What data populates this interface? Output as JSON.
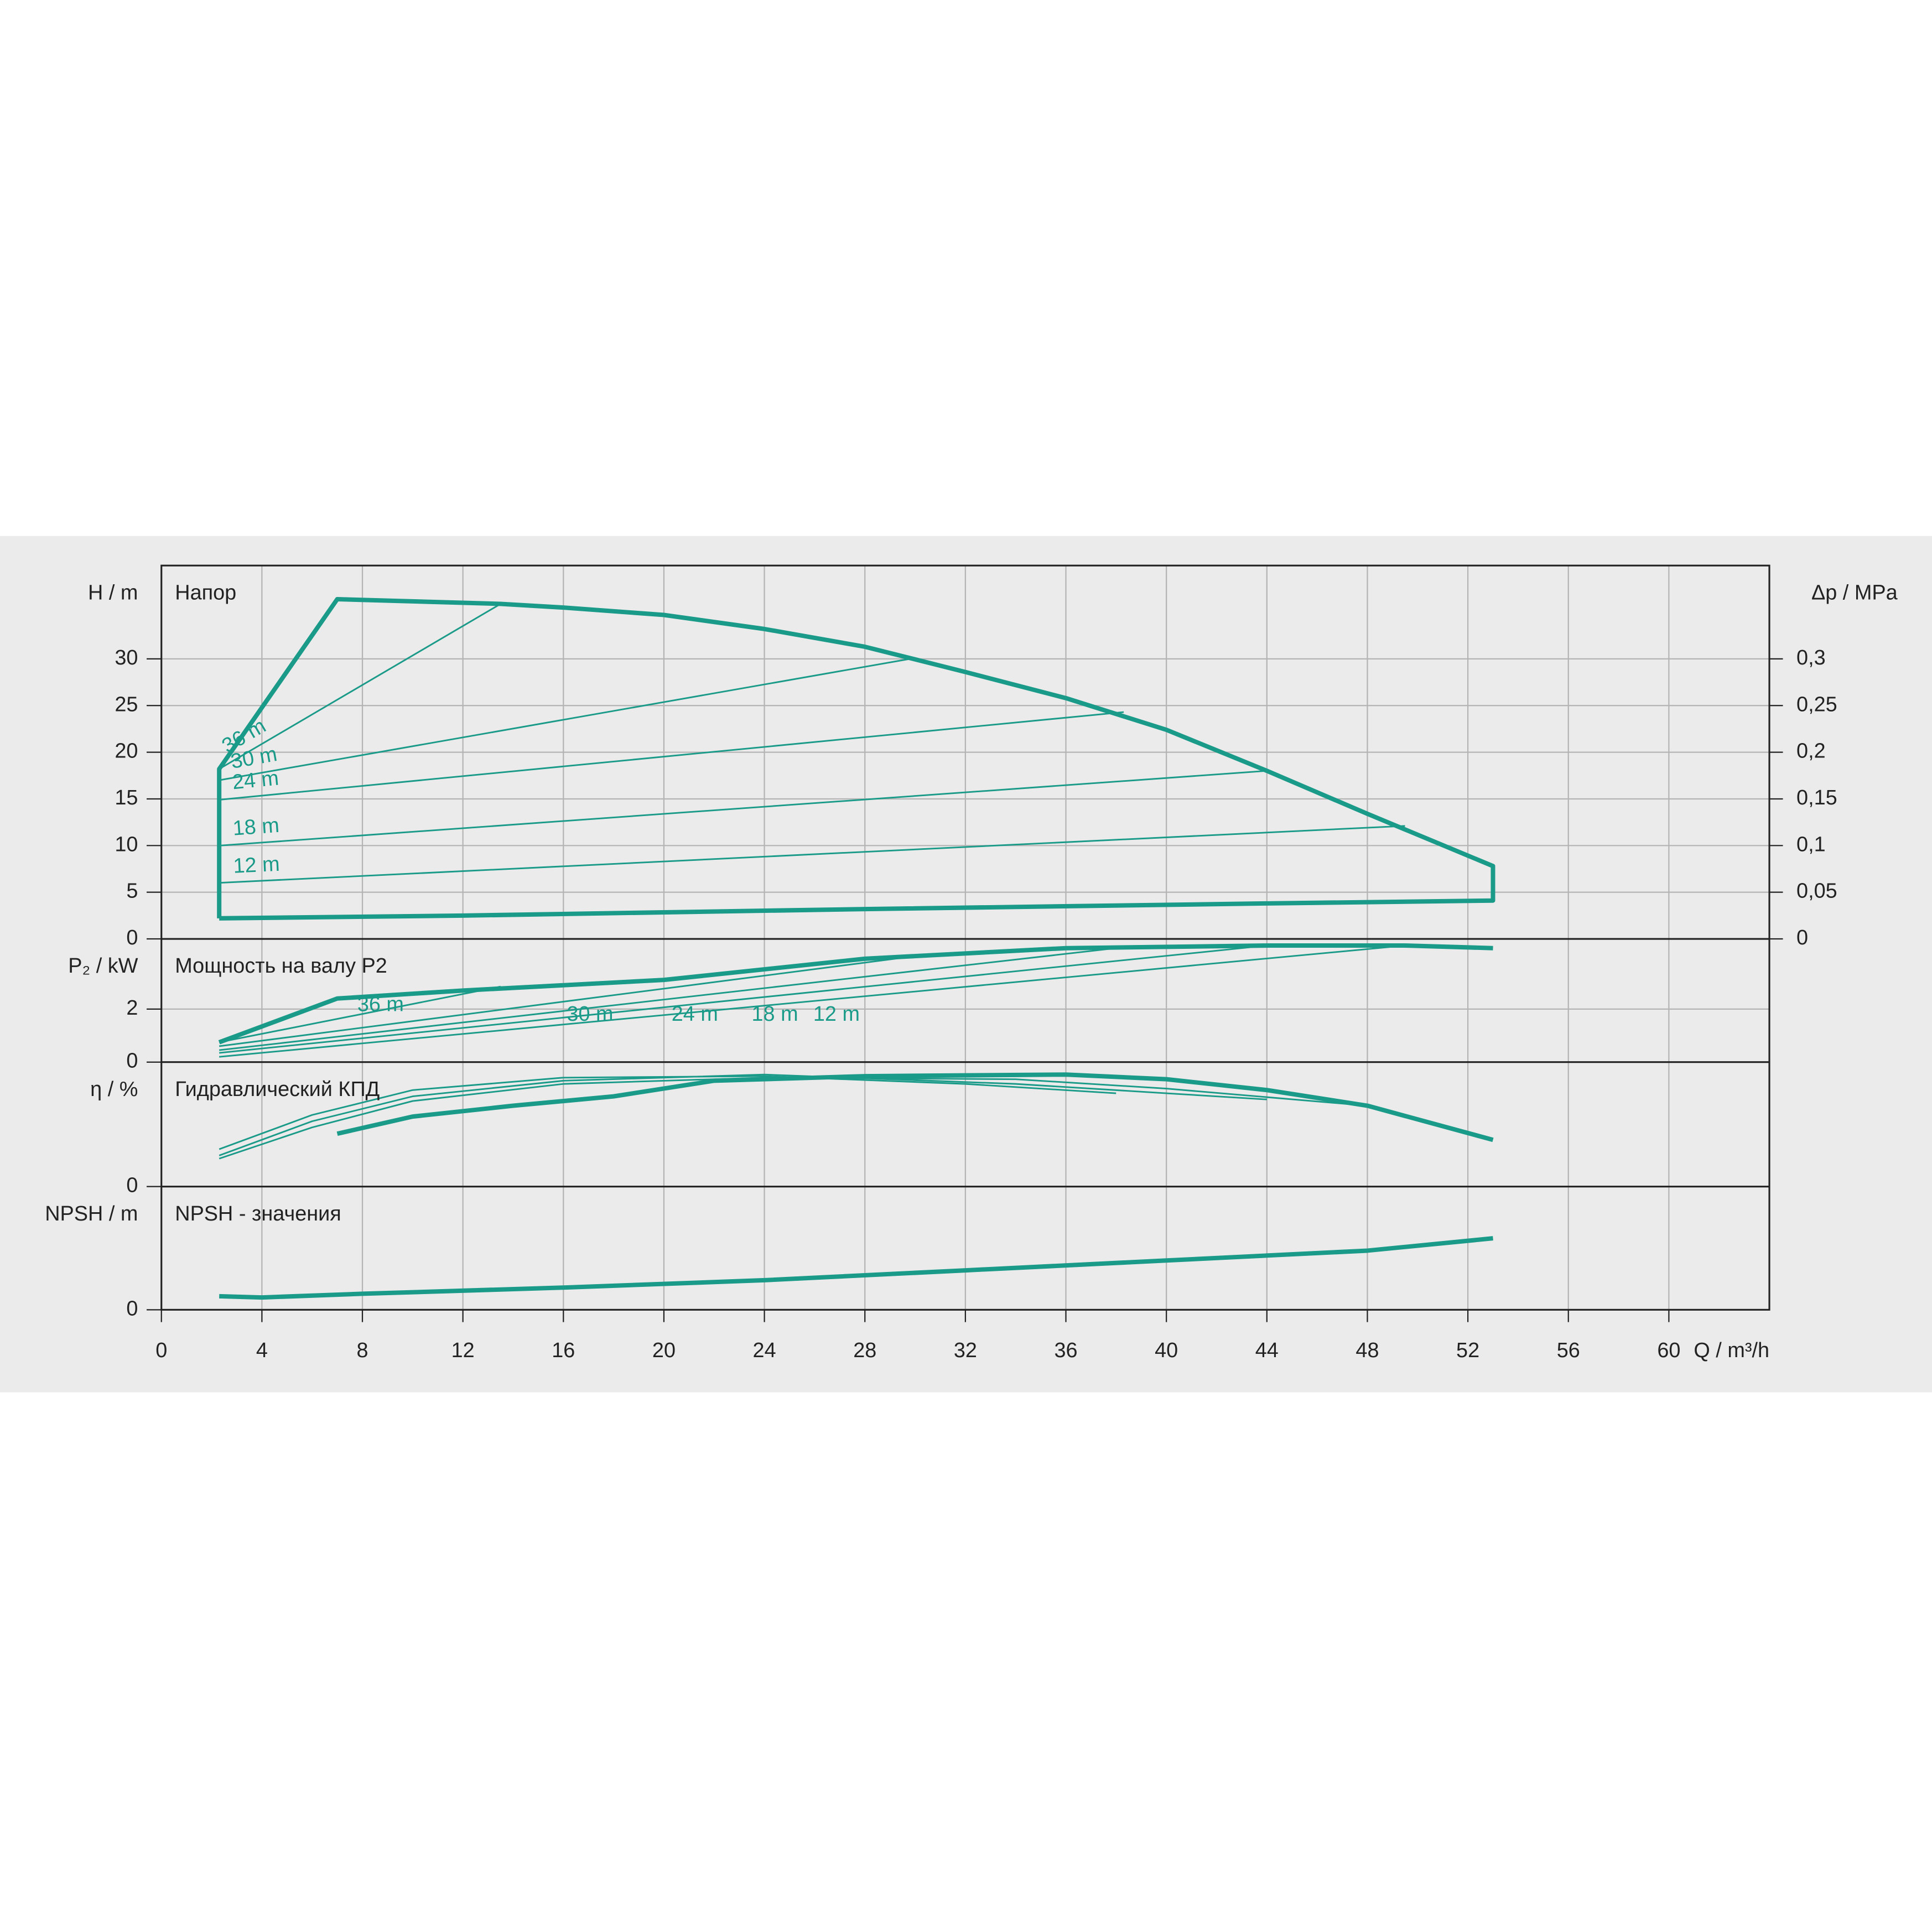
{
  "chart_data": [
    {
      "type": "line",
      "title": "Напор",
      "y_label": "H / m",
      "y2_label": "Δp / MPa",
      "xlim": [
        0,
        64
      ],
      "ylim": [
        0,
        40
      ],
      "yticks": [
        0,
        5,
        10,
        15,
        20,
        25,
        30
      ],
      "y2lim": [
        0,
        0.4
      ],
      "y2ticks": [
        0,
        {
          "value": 0.05,
          "label": "0,05"
        },
        {
          "value": 0.1,
          "label": "0,1"
        },
        {
          "value": 0.15,
          "label": "0,15"
        },
        {
          "value": 0.2,
          "label": "0,2"
        },
        {
          "value": 0.25,
          "label": "0,25"
        },
        {
          "value": 0.3,
          "label": "0,3"
        }
      ],
      "grid": true,
      "color": "#1a9a88",
      "series": [
        {
          "bold": true,
          "x": [
            2.3,
            2.3,
            7,
            13.5,
            16,
            20,
            24,
            28,
            32,
            36,
            40,
            44,
            48,
            53,
            53,
            44,
            28,
            12,
            2.3
          ],
          "values": [
            2.2,
            18.2,
            36.4,
            35.9,
            35.5,
            34.7,
            33.2,
            31.3,
            28.6,
            25.8,
            22.4,
            18.0,
            13.4,
            7.8,
            4.1,
            3.8,
            3.2,
            2.5,
            2.2
          ]
        },
        {
          "name": "36 m",
          "x": [
            2.3,
            13.5
          ],
          "values": [
            18.2,
            35.9
          ]
        },
        {
          "name": "30 m",
          "x": [
            2.3,
            30
          ],
          "values": [
            17.0,
            30.1
          ]
        },
        {
          "name": "24 m",
          "x": [
            2.3,
            38.3
          ],
          "values": [
            14.9,
            24.3
          ]
        },
        {
          "name": "18 m",
          "x": [
            2.3,
            44
          ],
          "values": [
            10.0,
            18.0
          ]
        },
        {
          "name": "12 m",
          "x": [
            2.3,
            49.5
          ],
          "values": [
            6.0,
            12.1
          ]
        }
      ]
    },
    {
      "type": "line",
      "title": "Мощность на валу P2",
      "y_label": "P₂ / kW",
      "xlim": [
        0,
        64
      ],
      "ylim": [
        0,
        4.65
      ],
      "yticks": [
        0,
        2
      ],
      "grid": true,
      "color": "#1a9a88",
      "series": [
        {
          "bold": true,
          "x": [
            2.3,
            7,
            12,
            20,
            28,
            36,
            44,
            49.5,
            53
          ],
          "values": [
            0.75,
            2.4,
            2.7,
            3.1,
            3.9,
            4.3,
            4.4,
            4.4,
            4.3
          ]
        },
        {
          "name": "36 m",
          "x": [
            2.3,
            13.5
          ],
          "values": [
            0.75,
            2.85
          ]
        },
        {
          "name": "30 m",
          "x": [
            2.3,
            30
          ],
          "values": [
            0.6,
            4.0
          ]
        },
        {
          "name": "24 m",
          "x": [
            2.3,
            38
          ],
          "values": [
            0.45,
            4.3
          ]
        },
        {
          "name": "18 m",
          "x": [
            2.3,
            44
          ],
          "values": [
            0.35,
            4.4
          ]
        },
        {
          "name": "12 m",
          "x": [
            2.3,
            49.5
          ],
          "values": [
            0.2,
            4.4
          ]
        }
      ]
    },
    {
      "type": "line",
      "title": "Гидравлический КПД",
      "y_label": "η / %",
      "xlim": [
        0,
        64
      ],
      "ylim": [
        0,
        80
      ],
      "yticks": [
        0
      ],
      "grid": true,
      "color": "#1a9a88",
      "series": [
        {
          "bold": true,
          "x": [
            7,
            10,
            14,
            18,
            22,
            28,
            36,
            40,
            44,
            48,
            53
          ],
          "values": [
            34,
            45,
            52,
            58,
            68,
            71,
            72,
            69,
            62,
            52,
            30
          ]
        },
        {
          "x": [
            2.3,
            6,
            10,
            16,
            24,
            34,
            40,
            48
          ],
          "values": [
            18,
            38,
            55,
            66,
            70,
            69,
            63,
            52
          ]
        },
        {
          "x": [
            2.3,
            6,
            10,
            16,
            24,
            34,
            40,
            44
          ],
          "values": [
            20,
            42,
            58,
            68,
            72,
            66,
            60,
            56
          ]
        },
        {
          "x": [
            2.3,
            6,
            10,
            16,
            24,
            32,
            38
          ],
          "values": [
            24,
            46,
            62,
            70,
            71,
            66,
            60
          ]
        }
      ]
    },
    {
      "type": "line",
      "title": "NPSH - значения",
      "y_label": "NPSH / m",
      "x_label": "Q / m³/h",
      "xlim": [
        0,
        64
      ],
      "ylim": [
        0,
        10
      ],
      "yticks": [
        0
      ],
      "xticks": [
        0,
        4,
        8,
        12,
        16,
        20,
        24,
        28,
        32,
        36,
        40,
        44,
        48,
        52,
        56,
        60
      ],
      "grid": true,
      "color": "#1a9a88",
      "series": [
        {
          "bold": true,
          "x": [
            2.3,
            4,
            8,
            16,
            24,
            32,
            40,
            48,
            53
          ],
          "values": [
            1.1,
            1.0,
            1.3,
            1.8,
            2.4,
            3.2,
            4.0,
            4.8,
            5.8
          ]
        }
      ]
    }
  ]
}
